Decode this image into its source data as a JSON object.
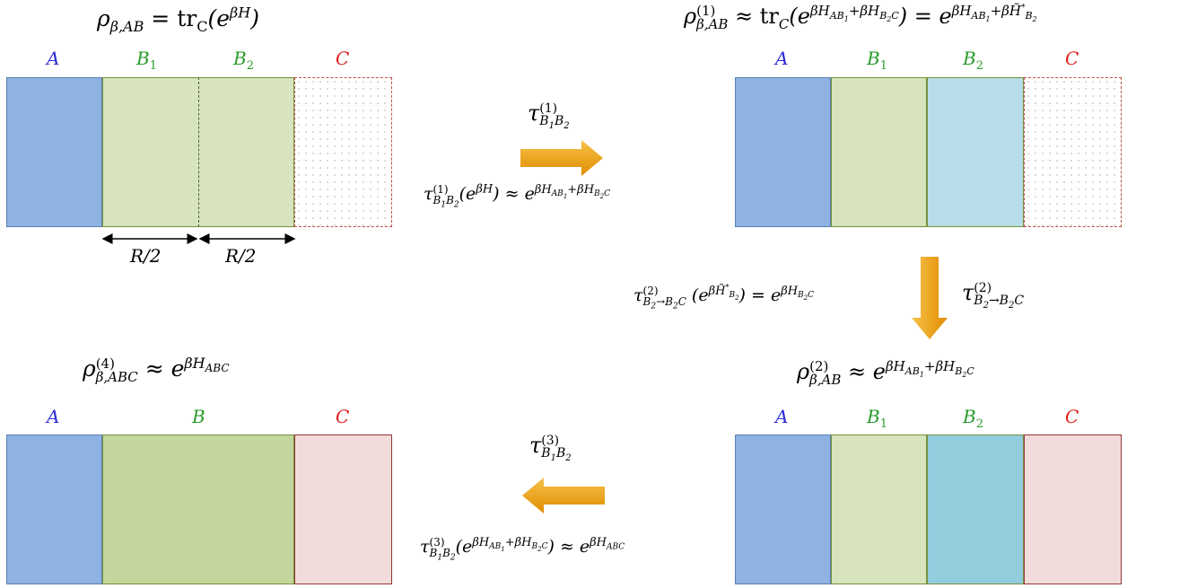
{
  "panels": {
    "top_left": {
      "title": "ρβ,AB = trC(eβH)",
      "labels": {
        "a": "A",
        "b1": "B1",
        "b2": "B2",
        "c": "C"
      },
      "width_label_1": "R/2",
      "width_label_2": "R/2"
    },
    "top_right": {
      "title": "ρβ,AB(1) ≈ trC(eβHAB1+βHB2C) = eβHAB1+βH̃*B2",
      "labels": {
        "a": "A",
        "b1": "B1",
        "b2": "B2",
        "c": "C"
      }
    },
    "bottom_right": {
      "title": "ρβ,AB(2) ≈ eβHAB1+βHB2C",
      "labels": {
        "a": "A",
        "b1": "B1",
        "b2": "B2",
        "c": "C"
      }
    },
    "bottom_left": {
      "title": "ρβ,ABC(4) ≈ eβHABC",
      "labels": {
        "a": "A",
        "b": "B",
        "c": "C"
      }
    }
  },
  "arrows": {
    "step1": {
      "label": "τB1B2(1)",
      "equation": "τB1B2(1)(eβH) ≈ eβHAB1+βHB2C"
    },
    "step2": {
      "label": "τB2→B2C(2)",
      "equation": "τB2→B2C(2)(eβH̃*B2) = eβHB2C"
    },
    "step3": {
      "label": "τB1B2(3)",
      "equation": "τB1B2(3)(eβHAB1+βHB2C) ≈ eβHABC"
    }
  },
  "colors": {
    "region_a": "#8eb3e2",
    "region_b": "#d7e4bd",
    "region_b2_step1": "#b7dee8",
    "region_b2_step2": "#93cddd",
    "region_b_merged": "#c3d69b",
    "region_c": "#f2dcdb",
    "arrow": "#f0a30a"
  }
}
